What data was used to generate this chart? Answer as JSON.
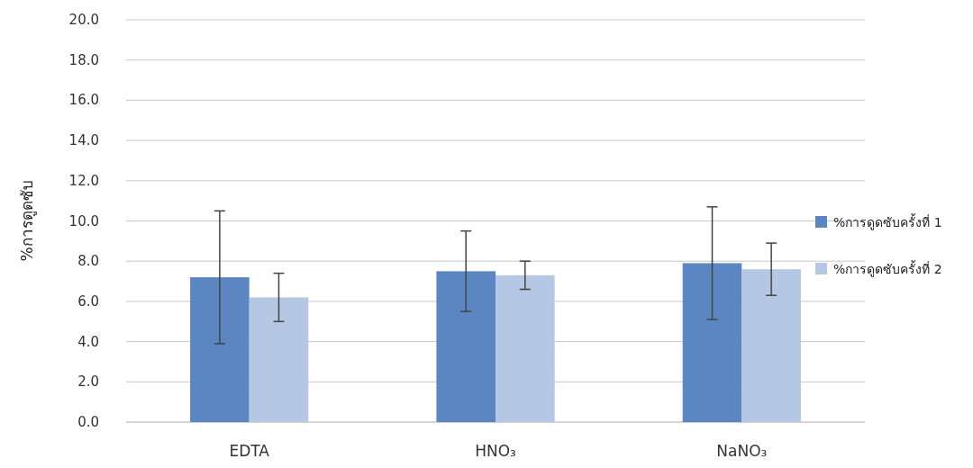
{
  "chart_data": {
    "type": "bar",
    "ylabel": "%การดูดซับ",
    "categories": [
      "EDTA",
      "HNO₃",
      "NaNO₃"
    ],
    "series": [
      {
        "name": "%การดูดซับครั้งที่ 1",
        "color": "#5b86c2",
        "values": [
          7.2,
          7.5,
          7.9
        ],
        "errors": [
          3.3,
          2.0,
          2.8
        ]
      },
      {
        "name": "%การดูดซับครั้งที่ 2",
        "color": "#b4c7e4",
        "values": [
          6.2,
          7.3,
          7.6
        ],
        "errors": [
          1.2,
          0.7,
          1.3
        ]
      }
    ],
    "ylim": [
      0,
      20
    ],
    "yticks": [
      {
        "value": 0,
        "label": "0.0"
      },
      {
        "value": 2,
        "label": "2.0"
      },
      {
        "value": 4,
        "label": "4.0"
      },
      {
        "value": 6,
        "label": "6.0"
      },
      {
        "value": 8,
        "label": "8.0"
      },
      {
        "value": 10,
        "label": "10.0"
      },
      {
        "value": 12,
        "label": "12.0"
      },
      {
        "value": 14,
        "label": "14.0"
      },
      {
        "value": 16,
        "label": "16.0"
      },
      {
        "value": 18,
        "label": "18.0"
      },
      {
        "value": 20,
        "label": "20.0"
      }
    ],
    "grid": "y",
    "legend": "right"
  }
}
